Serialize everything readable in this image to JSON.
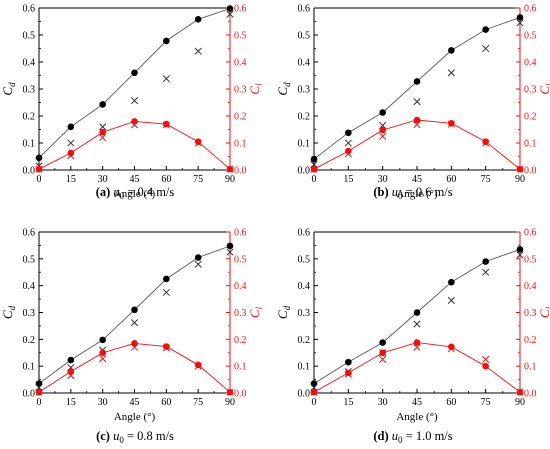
{
  "colors": {
    "cd": "#000000",
    "cl": "#ee1111",
    "cd_cross": "#333333"
  },
  "chart_data": [
    {
      "type": "line",
      "caption": {
        "tag": "(a)",
        "var": "u",
        "sub": "0",
        "rest": " = 0.4 m/s"
      },
      "xlabel": "Angle (°)",
      "ylabel_left": "C",
      "ylabel_left_sub": "d",
      "ylabel_right": "C",
      "ylabel_right_sub": "l",
      "x": [
        0,
        15,
        30,
        45,
        60,
        75,
        90
      ],
      "xlim": [
        0,
        90
      ],
      "x_ticks": [
        "0",
        "15",
        "30",
        "45",
        "60",
        "75",
        "90"
      ],
      "ylim": [
        0,
        0.6
      ],
      "y_ticks": [
        "0.0",
        "0.1",
        "0.2",
        "0.3",
        "0.4",
        "0.5",
        "0.6"
      ],
      "series": [
        {
          "axis": "left",
          "marker": "circle",
          "line": true,
          "values": [
            0.045,
            0.16,
            0.243,
            0.36,
            0.478,
            0.558,
            0.598
          ]
        },
        {
          "axis": "left",
          "marker": "cross",
          "line": false,
          "values": [
            0.015,
            0.1,
            0.16,
            0.257,
            0.338,
            0.44,
            0.577
          ]
        },
        {
          "axis": "right",
          "marker": "circle",
          "line": true,
          "values": [
            0.003,
            0.063,
            0.14,
            0.18,
            0.17,
            0.105,
            0.003
          ]
        },
        {
          "axis": "right",
          "marker": "cross",
          "line": false,
          "values": [
            0.003,
            0.053,
            0.12,
            0.167,
            0.167,
            0.1,
            0.003
          ]
        }
      ]
    },
    {
      "type": "line",
      "caption": {
        "tag": "(b)",
        "var": "u",
        "sub": "0",
        "rest": " = 0.6 m/s"
      },
      "xlabel": "Angle (°)",
      "ylabel_left": "C",
      "ylabel_left_sub": "d",
      "ylabel_right": "C",
      "ylabel_right_sub": "l",
      "x": [
        0,
        15,
        30,
        45,
        60,
        75,
        90
      ],
      "xlim": [
        0,
        90
      ],
      "x_ticks": [
        "0",
        "15",
        "30",
        "45",
        "60",
        "75",
        "90"
      ],
      "ylim": [
        0,
        0.6
      ],
      "y_ticks": [
        "0.0",
        "0.1",
        "0.2",
        "0.3",
        "0.4",
        "0.5",
        "0.6"
      ],
      "series": [
        {
          "axis": "left",
          "marker": "circle",
          "line": true,
          "values": [
            0.04,
            0.138,
            0.213,
            0.328,
            0.443,
            0.52,
            0.565
          ]
        },
        {
          "axis": "left",
          "marker": "cross",
          "line": false,
          "values": [
            0.02,
            0.1,
            0.165,
            0.253,
            0.36,
            0.45,
            0.545
          ]
        },
        {
          "axis": "right",
          "marker": "circle",
          "line": true,
          "values": [
            0.003,
            0.07,
            0.148,
            0.185,
            0.173,
            0.105,
            0.003
          ]
        },
        {
          "axis": "right",
          "marker": "cross",
          "line": false,
          "values": [
            0.003,
            0.06,
            0.125,
            0.168,
            0.17,
            0.1,
            0.003
          ]
        }
      ]
    },
    {
      "type": "line",
      "caption": {
        "tag": "(c)",
        "var": "u",
        "sub": "0",
        "rest": " = 0.8 m/s"
      },
      "xlabel": "Angle (°)",
      "ylabel_left": "C",
      "ylabel_left_sub": "d",
      "ylabel_right": "C",
      "ylabel_right_sub": "l",
      "x": [
        0,
        15,
        30,
        45,
        60,
        75,
        90
      ],
      "xlim": [
        0,
        90
      ],
      "x_ticks": [
        "0",
        "15",
        "30",
        "45",
        "60",
        "75",
        "90"
      ],
      "ylim": [
        0,
        0.6
      ],
      "y_ticks": [
        "0.0",
        "0.1",
        "0.2",
        "0.3",
        "0.4",
        "0.5",
        "0.6"
      ],
      "series": [
        {
          "axis": "left",
          "marker": "circle",
          "line": true,
          "values": [
            0.035,
            0.123,
            0.198,
            0.31,
            0.425,
            0.505,
            0.548
          ]
        },
        {
          "axis": "left",
          "marker": "cross",
          "line": false,
          "values": [
            0.02,
            0.095,
            0.16,
            0.262,
            0.375,
            0.48,
            0.525
          ]
        },
        {
          "axis": "right",
          "marker": "circle",
          "line": true,
          "values": [
            0.003,
            0.08,
            0.15,
            0.185,
            0.173,
            0.105,
            0.003
          ]
        },
        {
          "axis": "right",
          "marker": "cross",
          "line": false,
          "values": [
            0.003,
            0.065,
            0.128,
            0.17,
            0.168,
            0.1,
            0.003
          ]
        }
      ]
    },
    {
      "type": "line",
      "caption": {
        "tag": "(d)",
        "var": "u",
        "sub": "0",
        "rest": " = 1.0 m/s"
      },
      "xlabel": "Angle (°)",
      "ylabel_left": "C",
      "ylabel_left_sub": "d",
      "ylabel_right": "C",
      "ylabel_right_sub": "l",
      "x": [
        0,
        15,
        30,
        45,
        60,
        75,
        90
      ],
      "xlim": [
        0,
        90
      ],
      "x_ticks": [
        "0",
        "15",
        "30",
        "45",
        "60",
        "75",
        "90"
      ],
      "ylim": [
        0,
        0.6
      ],
      "y_ticks": [
        "0.0",
        "0.1",
        "0.2",
        "0.3",
        "0.4",
        "0.5",
        "0.6"
      ],
      "series": [
        {
          "axis": "left",
          "marker": "circle",
          "line": true,
          "values": [
            0.035,
            0.115,
            0.188,
            0.3,
            0.413,
            0.49,
            0.535
          ]
        },
        {
          "axis": "left",
          "marker": "cross",
          "line": false,
          "values": [
            0.02,
            0.08,
            0.15,
            0.257,
            0.345,
            0.45,
            0.515
          ]
        },
        {
          "axis": "right",
          "marker": "circle",
          "line": true,
          "values": [
            0.003,
            0.075,
            0.15,
            0.188,
            0.172,
            0.1,
            0.003
          ]
        },
        {
          "axis": "right",
          "marker": "cross",
          "line": false,
          "values": [
            0.003,
            0.07,
            0.125,
            0.17,
            0.165,
            0.125,
            0.003
          ]
        }
      ]
    }
  ]
}
